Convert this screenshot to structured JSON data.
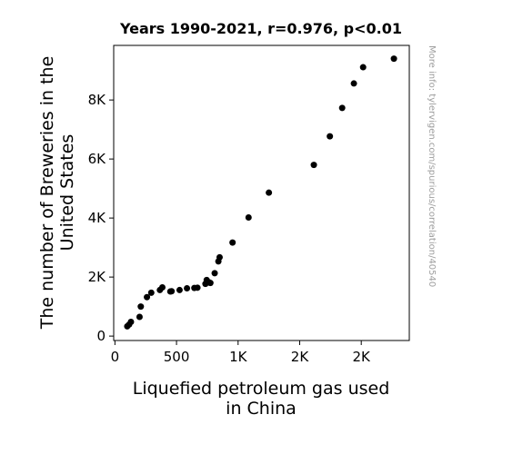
{
  "chart_data": {
    "type": "scatter",
    "title": "Years 1990-2021, r=0.976, p<0.01",
    "xlabel_lines": [
      "Liquefied petroleum gas used",
      "in China"
    ],
    "ylabel_lines": [
      "The number of Breweries in the",
      "United States"
    ],
    "watermark": "More info: tylervigen.com/spurious/correlation/40540",
    "xlim": [
      -10,
      2390
    ],
    "ylim": [
      -150,
      9850
    ],
    "x_ticks": [
      {
        "value": 0,
        "label": "0"
      },
      {
        "value": 500,
        "label": "500"
      },
      {
        "value": 1000,
        "label": "1K"
      },
      {
        "value": 1500,
        "label": "2K"
      },
      {
        "value": 2000,
        "label": "2K"
      }
    ],
    "y_ticks": [
      {
        "value": 0,
        "label": "0"
      },
      {
        "value": 2000,
        "label": "2K"
      },
      {
        "value": 4000,
        "label": "4K"
      },
      {
        "value": 6000,
        "label": "6K"
      },
      {
        "value": 8000,
        "label": "8K"
      }
    ],
    "grid": false,
    "marker_color": "#000000",
    "points": [
      {
        "x": 100,
        "y": 330
      },
      {
        "x": 115,
        "y": 390
      },
      {
        "x": 130,
        "y": 480
      },
      {
        "x": 200,
        "y": 650
      },
      {
        "x": 210,
        "y": 1000
      },
      {
        "x": 260,
        "y": 1320
      },
      {
        "x": 295,
        "y": 1470
      },
      {
        "x": 365,
        "y": 1560
      },
      {
        "x": 385,
        "y": 1650
      },
      {
        "x": 450,
        "y": 1510
      },
      {
        "x": 460,
        "y": 1520
      },
      {
        "x": 525,
        "y": 1560
      },
      {
        "x": 585,
        "y": 1620
      },
      {
        "x": 645,
        "y": 1630
      },
      {
        "x": 670,
        "y": 1640
      },
      {
        "x": 735,
        "y": 1770
      },
      {
        "x": 745,
        "y": 1900
      },
      {
        "x": 765,
        "y": 1820
      },
      {
        "x": 775,
        "y": 1800
      },
      {
        "x": 810,
        "y": 2130
      },
      {
        "x": 840,
        "y": 2530
      },
      {
        "x": 850,
        "y": 2670
      },
      {
        "x": 955,
        "y": 3170
      },
      {
        "x": 1085,
        "y": 4020
      },
      {
        "x": 1250,
        "y": 4860
      },
      {
        "x": 1615,
        "y": 5800
      },
      {
        "x": 1745,
        "y": 6770
      },
      {
        "x": 1845,
        "y": 7730
      },
      {
        "x": 1940,
        "y": 8560
      },
      {
        "x": 2015,
        "y": 9110
      },
      {
        "x": 2265,
        "y": 9400
      }
    ]
  }
}
